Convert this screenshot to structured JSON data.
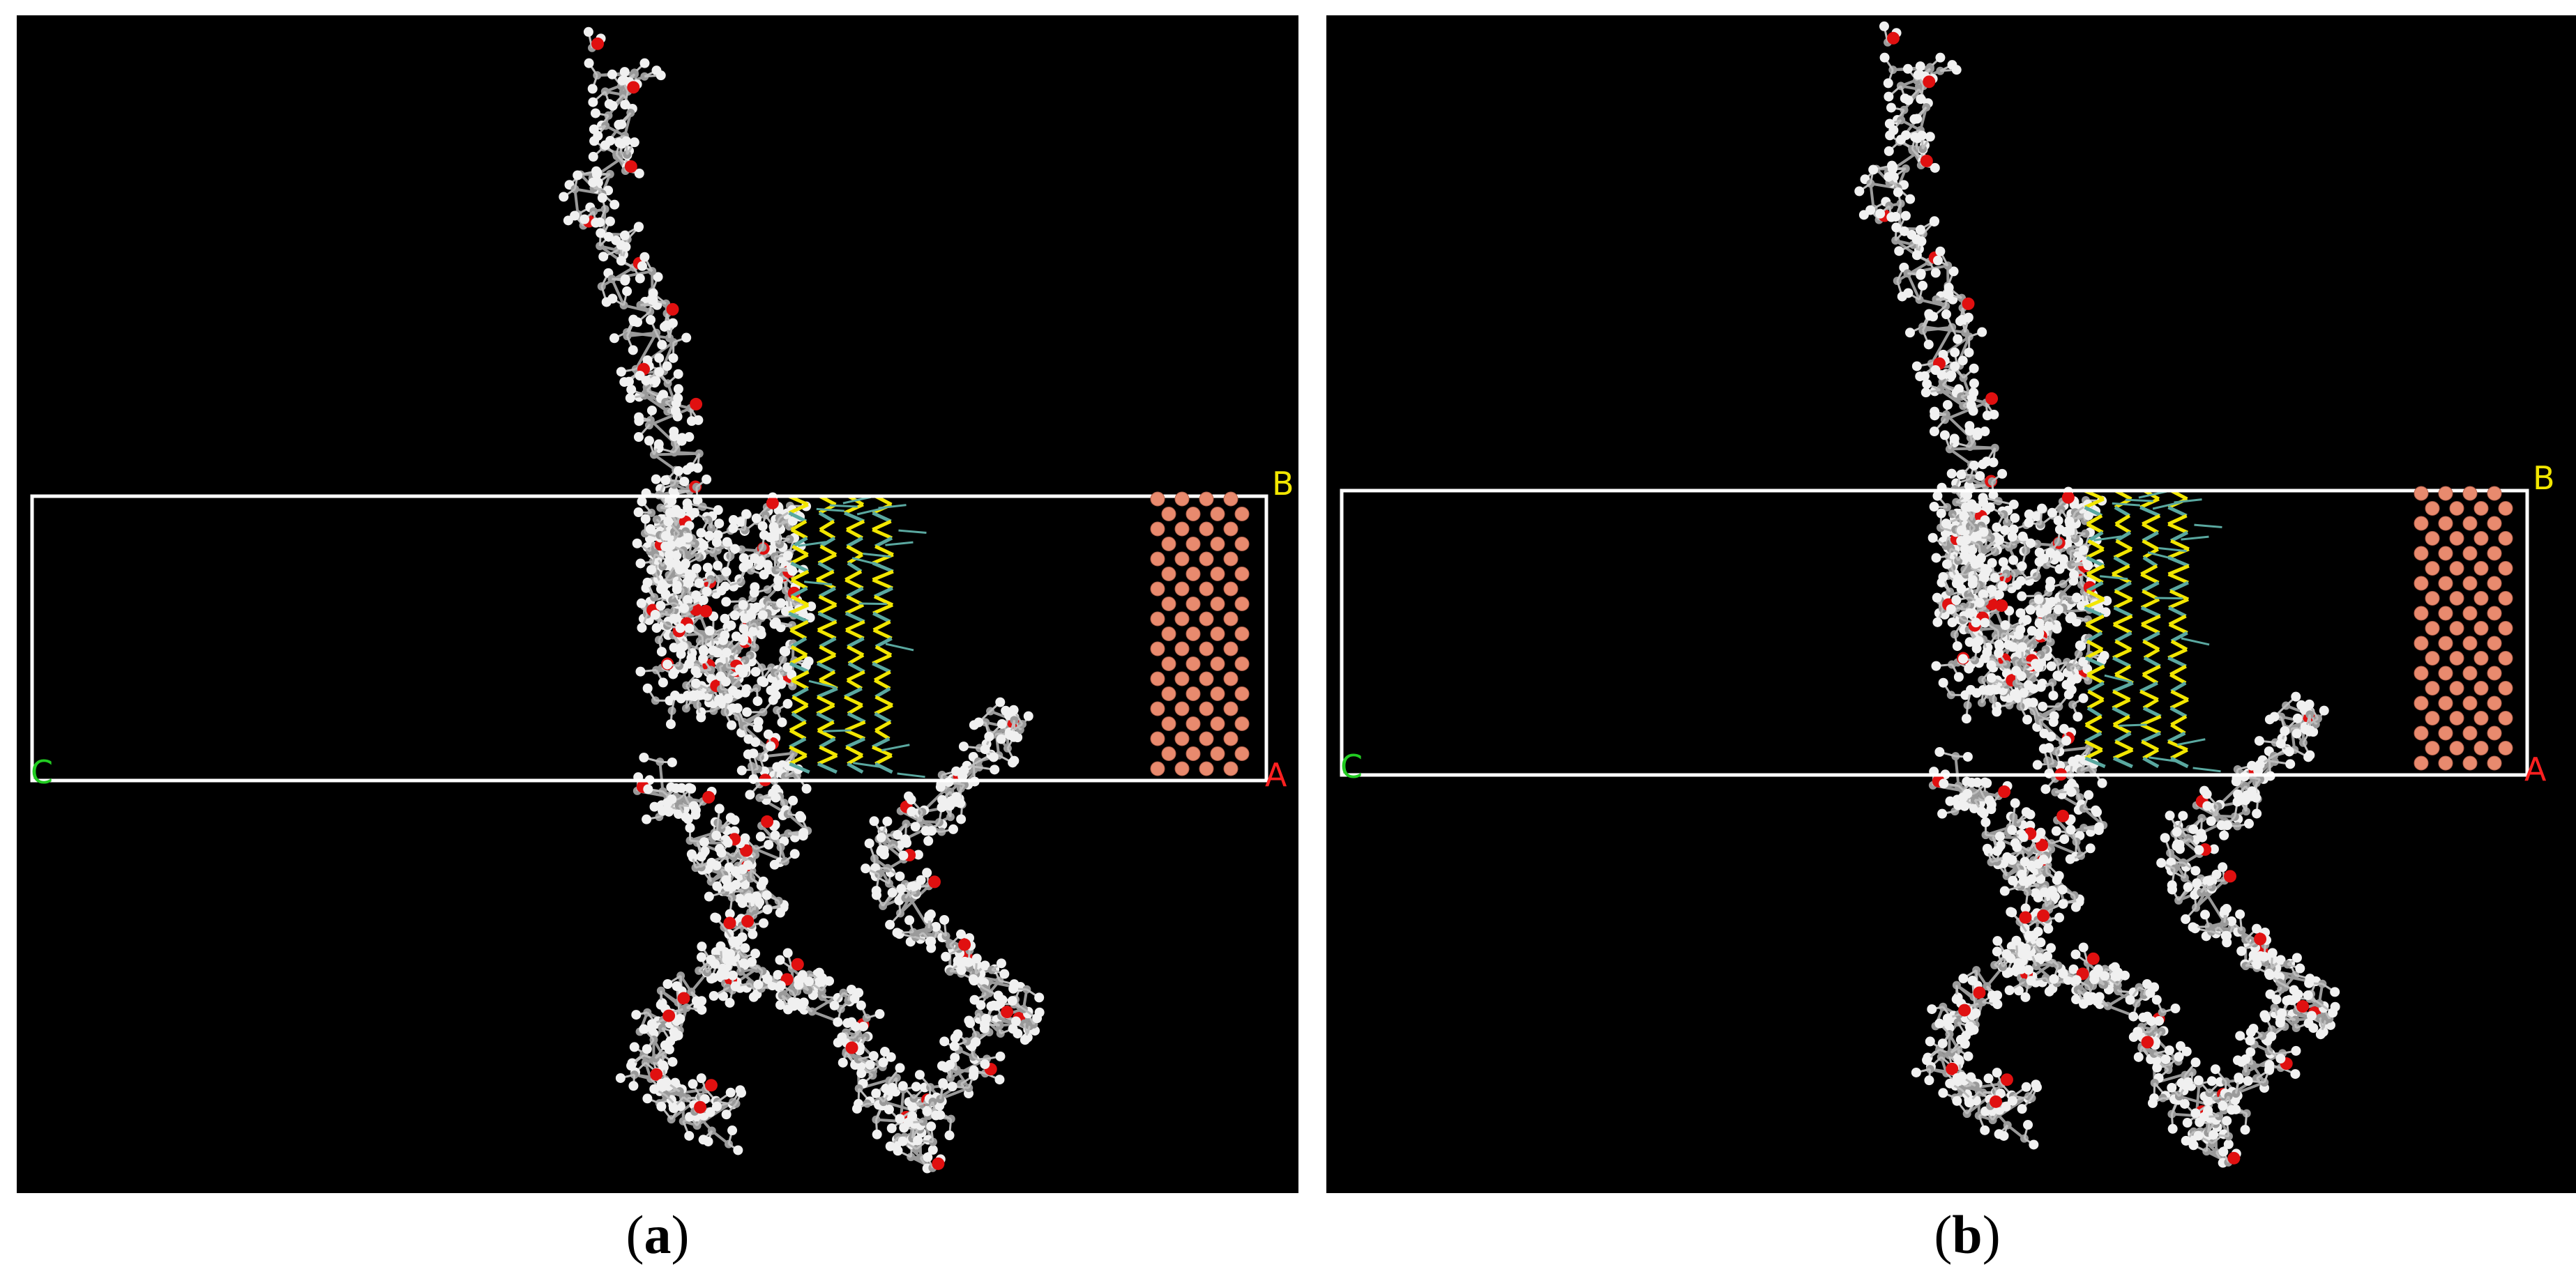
{
  "panels": [
    {
      "id": "a",
      "caption_letter": "a",
      "axis_labels": {
        "b": "B",
        "c": "C",
        "a": "A"
      }
    },
    {
      "id": "b",
      "caption_letter": "b",
      "axis_labels": {
        "b": "B",
        "c": "C",
        "a": "A"
      }
    }
  ],
  "colors": {
    "background": "#000000",
    "cell_box": "#ffffff",
    "carbon": "#9a9a9a",
    "hydrogen": "#f0f0f0",
    "oxygen": "#e01010",
    "copper": "#e88a6e",
    "sulfide_layer": "#f2e600",
    "bond_teal": "#5aa8a0",
    "label_b": "#f2e600",
    "label_c": "#22cc22",
    "label_a": "#ff2020"
  }
}
